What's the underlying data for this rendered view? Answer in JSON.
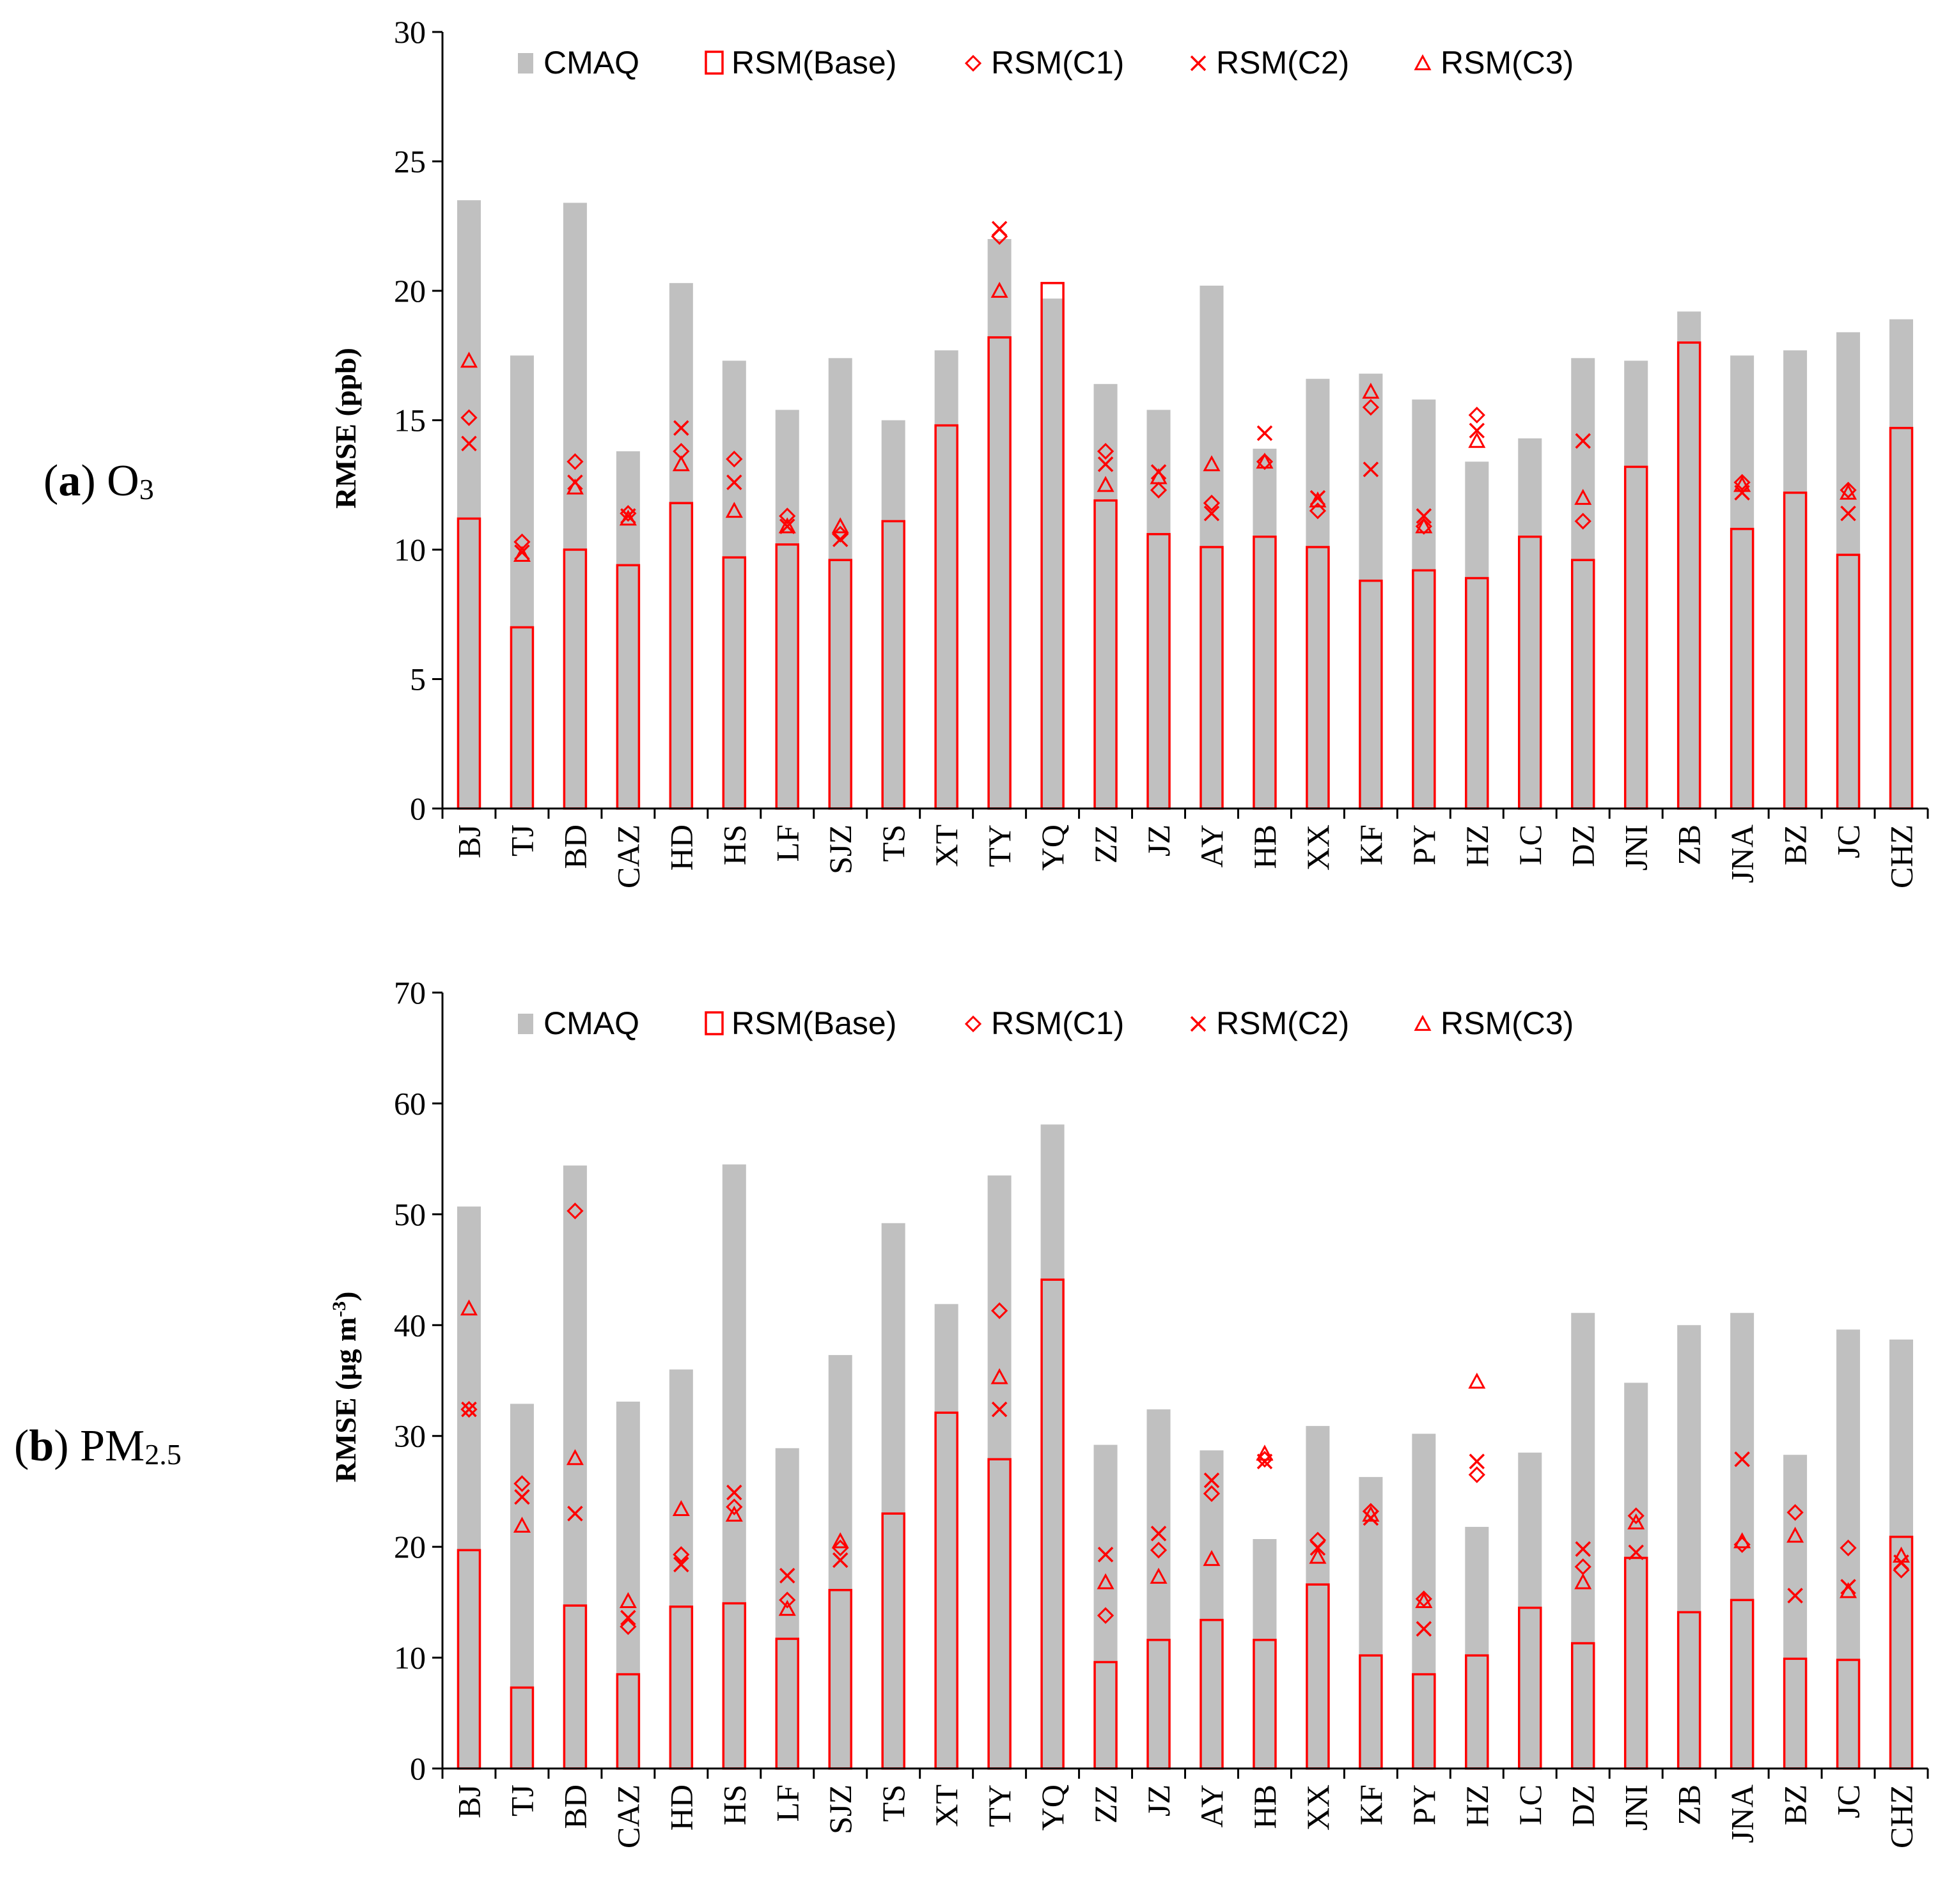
{
  "colors": {
    "cmaq": "#c0c0c0",
    "rsm": "#ff0000",
    "axis": "#000000"
  },
  "legend": [
    "CMAQ",
    "RSM(Base)",
    "RSM(C1)",
    "RSM(C2)",
    "RSM(C3)"
  ],
  "panel_labels": {
    "a": {
      "letter": "a",
      "species": "O",
      "sub": "3"
    },
    "b": {
      "letter": "b",
      "species": "PM",
      "sub": "2.5"
    }
  },
  "chart_data": [
    {
      "id": "a",
      "type": "bar",
      "ylabel": "RMSE (ppb)",
      "ylim": [
        0,
        30
      ],
      "yticks": [
        0,
        5,
        10,
        15,
        20,
        25,
        30
      ],
      "categories": [
        "BJ",
        "TJ",
        "BD",
        "CAZ",
        "HD",
        "HS",
        "LF",
        "SJZ",
        "TS",
        "XT",
        "TY",
        "YQ",
        "ZZ",
        "JZ",
        "AY",
        "HB",
        "XX",
        "KF",
        "PY",
        "HZ",
        "LC",
        "DZ",
        "JNI",
        "ZB",
        "JNA",
        "BZ",
        "JC",
        "CHZ"
      ],
      "series": [
        {
          "name": "CMAQ",
          "kind": "bar",
          "values": [
            23.5,
            17.5,
            23.4,
            13.8,
            20.3,
            17.3,
            15.4,
            17.4,
            15.0,
            17.7,
            22.0,
            19.7,
            16.4,
            15.4,
            20.2,
            13.9,
            16.6,
            16.8,
            15.8,
            13.4,
            14.3,
            17.4,
            17.3,
            19.2,
            17.5,
            17.7,
            18.4,
            18.9
          ]
        },
        {
          "name": "RSM(Base)",
          "kind": "outline-bar",
          "values": [
            11.2,
            7.0,
            10.0,
            9.4,
            11.8,
            9.7,
            10.2,
            9.6,
            11.1,
            14.8,
            18.2,
            20.3,
            11.9,
            10.6,
            10.1,
            10.5,
            10.1,
            8.8,
            9.2,
            8.9,
            10.5,
            9.6,
            13.2,
            18.0,
            10.8,
            12.2,
            9.8,
            14.7
          ]
        },
        {
          "name": "RSM(C1)",
          "kind": "diamond",
          "values": [
            15.1,
            10.3,
            13.4,
            11.4,
            13.8,
            13.5,
            11.3,
            10.6,
            null,
            null,
            22.1,
            null,
            13.8,
            12.3,
            11.8,
            13.4,
            11.5,
            15.5,
            10.9,
            15.2,
            null,
            11.1,
            null,
            null,
            12.6,
            null,
            12.3,
            null
          ]
        },
        {
          "name": "RSM(C2)",
          "kind": "cross",
          "values": [
            14.1,
            9.9,
            12.6,
            11.3,
            14.7,
            12.6,
            10.9,
            10.4,
            null,
            null,
            22.4,
            null,
            13.3,
            13.0,
            11.4,
            14.5,
            12.0,
            13.1,
            11.3,
            14.6,
            null,
            14.2,
            null,
            null,
            12.2,
            null,
            11.4,
            null
          ]
        },
        {
          "name": "RSM(C3)",
          "kind": "triangle",
          "values": [
            17.3,
            9.8,
            12.4,
            11.2,
            13.3,
            11.5,
            10.9,
            10.9,
            null,
            null,
            20.0,
            null,
            12.5,
            12.8,
            13.3,
            13.4,
            11.9,
            16.1,
            10.9,
            14.2,
            null,
            12.0,
            null,
            null,
            12.5,
            null,
            12.2,
            null
          ]
        }
      ]
    },
    {
      "id": "b",
      "type": "bar",
      "ylabel": "RMSE (μg m",
      "ylabel_sup": "-3",
      "ylabel_end": ")",
      "ylim": [
        0,
        70
      ],
      "yticks": [
        0,
        10,
        20,
        30,
        40,
        50,
        60,
        70
      ],
      "categories": [
        "BJ",
        "TJ",
        "BD",
        "CAZ",
        "HD",
        "HS",
        "LF",
        "SJZ",
        "TS",
        "XT",
        "TY",
        "YQ",
        "ZZ",
        "JZ",
        "AY",
        "HB",
        "XX",
        "KF",
        "PY",
        "HZ",
        "LC",
        "DZ",
        "JNI",
        "ZB",
        "JNA",
        "BZ",
        "JC",
        "CHZ"
      ],
      "series": [
        {
          "name": "CMAQ",
          "kind": "bar",
          "values": [
            50.7,
            32.9,
            54.4,
            33.1,
            36.0,
            54.5,
            28.9,
            37.3,
            49.2,
            41.9,
            53.5,
            58.1,
            29.2,
            32.4,
            28.7,
            20.7,
            30.9,
            26.3,
            30.2,
            21.8,
            28.5,
            41.1,
            34.8,
            40.0,
            41.1,
            28.3,
            39.6,
            38.7
          ]
        },
        {
          "name": "RSM(Base)",
          "kind": "outline-bar",
          "values": [
            19.7,
            7.3,
            14.7,
            8.5,
            14.6,
            14.9,
            11.7,
            16.1,
            23.0,
            32.1,
            27.9,
            44.1,
            9.6,
            11.6,
            13.4,
            11.6,
            16.6,
            10.2,
            8.5,
            10.2,
            14.5,
            11.3,
            19.0,
            14.1,
            15.2,
            9.9,
            9.8,
            20.9
          ]
        },
        {
          "name": "RSM(C1)",
          "kind": "diamond",
          "values": [
            32.4,
            25.7,
            50.3,
            12.8,
            19.3,
            23.6,
            15.2,
            19.9,
            null,
            null,
            41.3,
            null,
            13.8,
            19.7,
            24.8,
            27.9,
            20.6,
            23.2,
            15.3,
            26.5,
            null,
            18.2,
            22.8,
            null,
            20.2,
            23.1,
            19.9,
            17.9
          ]
        },
        {
          "name": "RSM(C2)",
          "kind": "cross",
          "values": [
            32.4,
            24.5,
            23.0,
            13.6,
            18.4,
            24.9,
            17.4,
            18.8,
            null,
            null,
            32.4,
            null,
            19.3,
            21.2,
            26.0,
            27.7,
            19.9,
            22.6,
            12.6,
            27.7,
            null,
            19.8,
            19.5,
            null,
            27.9,
            15.6,
            16.4,
            18.6
          ]
        },
        {
          "name": "RSM(C3)",
          "kind": "triangle",
          "values": [
            41.5,
            21.9,
            28.0,
            15.1,
            23.4,
            22.9,
            14.4,
            20.5,
            null,
            null,
            35.3,
            null,
            16.8,
            17.3,
            18.9,
            28.4,
            19.1,
            22.9,
            15.1,
            34.9,
            null,
            16.8,
            22.2,
            null,
            20.5,
            21.0,
            16.0,
            19.2
          ]
        }
      ]
    }
  ]
}
